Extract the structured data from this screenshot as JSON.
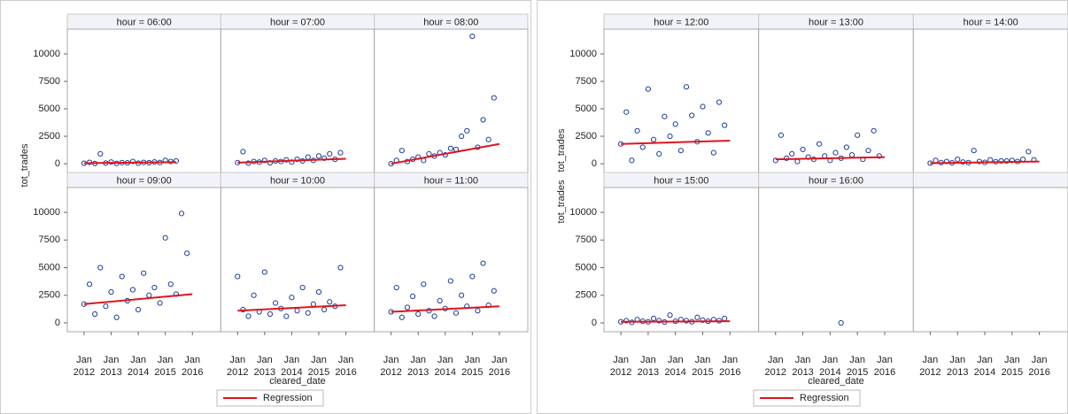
{
  "chart_data": [
    {
      "type": "scatter",
      "x_label": "cleared_date",
      "y_label": "tot_trades",
      "legend": "Regression",
      "point_color": "#1c3f94",
      "regression_color": "#e0141e",
      "columns": 3,
      "rows": 2,
      "x": [
        2012.0,
        2012.2,
        2012.4,
        2012.6,
        2012.8,
        2013.0,
        2013.2,
        2013.4,
        2013.6,
        2013.8,
        2014.0,
        2014.2,
        2014.4,
        2014.6,
        2014.8,
        2015.0,
        2015.2,
        2015.4,
        2015.6,
        2015.8
      ],
      "xlim": [
        2011.38,
        2017.05
      ],
      "xticks": [
        {
          "value": 2012,
          "label": "Jan 2012"
        },
        {
          "value": 2013,
          "label": "Jan 2013"
        },
        {
          "value": 2014,
          "label": "Jan 2014"
        },
        {
          "value": 2015,
          "label": "Jan 2015"
        },
        {
          "value": 2016,
          "label": "Jan 2016"
        }
      ],
      "ylim": [
        -800,
        12250
      ],
      "yticks": [
        0,
        2500,
        5000,
        7500,
        10000
      ],
      "panels": [
        {
          "title": "hour = 06:00",
          "values": [
            40,
            120,
            20,
            900,
            60,
            150,
            30,
            100,
            80,
            200,
            50,
            120,
            90,
            160,
            110,
            300,
            200,
            250,
            null,
            null
          ],
          "regression": {
            "x": [
              2012,
              2015.4
            ],
            "y": [
              50,
              150
            ]
          }
        },
        {
          "title": "hour = 07:00",
          "values": [
            100,
            1100,
            50,
            200,
            150,
            300,
            80,
            250,
            200,
            350,
            150,
            400,
            250,
            600,
            300,
            700,
            500,
            900,
            400,
            1000
          ],
          "regression": {
            "x": [
              2012,
              2016
            ],
            "y": [
              100,
              450
            ]
          }
        },
        {
          "title": "hour = 08:00",
          "values": [
            0,
            300,
            1200,
            200,
            400,
            600,
            300,
            900,
            700,
            1000,
            800,
            1400,
            1300,
            2500,
            3000,
            11600,
            1500,
            4000,
            2200,
            6000
          ],
          "regression": {
            "x": [
              2012,
              2016
            ],
            "y": [
              0,
              1800
            ]
          }
        },
        {
          "title": "hour = 09:00",
          "values": [
            1700,
            3500,
            800,
            5000,
            1500,
            2800,
            500,
            4200,
            2000,
            3000,
            1200,
            4500,
            2500,
            3200,
            1800,
            7700,
            3500,
            2600,
            9900,
            6300
          ],
          "regression": {
            "x": [
              2012,
              2016
            ],
            "y": [
              1700,
              2600
            ]
          }
        },
        {
          "title": "hour = 10:00",
          "values": [
            4200,
            1200,
            600,
            2500,
            1000,
            4600,
            800,
            1800,
            1300,
            600,
            2300,
            1100,
            3200,
            900,
            1700,
            2800,
            1200,
            1900,
            1500,
            5000
          ],
          "regression": {
            "x": [
              2012,
              2016
            ],
            "y": [
              1100,
              1600
            ]
          }
        },
        {
          "title": "hour = 11:00",
          "values": [
            1000,
            3200,
            500,
            1400,
            2400,
            800,
            3500,
            1100,
            600,
            2000,
            1300,
            3800,
            900,
            2500,
            1500,
            4200,
            1100,
            5400,
            1600,
            2900
          ],
          "regression": {
            "x": [
              2012,
              2016
            ],
            "y": [
              1000,
              1500
            ]
          }
        }
      ]
    },
    {
      "type": "scatter",
      "x_label": "cleared_date",
      "y_label": "tot_trades",
      "legend": "Regression",
      "point_color": "#1c3f94",
      "regression_color": "#e0141e",
      "columns": 3,
      "rows": 2,
      "x": [
        2012.0,
        2012.2,
        2012.4,
        2012.6,
        2012.8,
        2013.0,
        2013.2,
        2013.4,
        2013.6,
        2013.8,
        2014.0,
        2014.2,
        2014.4,
        2014.6,
        2014.8,
        2015.0,
        2015.2,
        2015.4,
        2015.6,
        2015.8
      ],
      "xlim": [
        2011.38,
        2017.05
      ],
      "xticks": [
        {
          "value": 2012,
          "label": "Jan 2012"
        },
        {
          "value": 2013,
          "label": "Jan 2013"
        },
        {
          "value": 2014,
          "label": "Jan 2014"
        },
        {
          "value": 2015,
          "label": "Jan 2015"
        },
        {
          "value": 2016,
          "label": "Jan 2016"
        }
      ],
      "ylim": [
        -800,
        12250
      ],
      "yticks": [
        0,
        2500,
        5000,
        7500,
        10000
      ],
      "panels": [
        {
          "title": "hour = 12:00",
          "values": [
            1800,
            4700,
            300,
            3000,
            1500,
            6800,
            2200,
            900,
            4300,
            2500,
            3600,
            1200,
            7000,
            4400,
            2000,
            5200,
            2800,
            1000,
            5600,
            3500
          ],
          "regression": {
            "x": [
              2012,
              2016
            ],
            "y": [
              1800,
              2100
            ]
          }
        },
        {
          "title": "hour = 13:00",
          "values": [
            300,
            2600,
            500,
            900,
            200,
            1300,
            600,
            400,
            1800,
            700,
            300,
            1000,
            500,
            1500,
            800,
            2600,
            400,
            1200,
            3000,
            700
          ],
          "regression": {
            "x": [
              2012,
              2016
            ],
            "y": [
              400,
              600
            ]
          }
        },
        {
          "title": "hour = 14:00",
          "values": [
            50,
            300,
            100,
            200,
            80,
            400,
            150,
            100,
            1200,
            200,
            120,
            350,
            180,
            250,
            250,
            300,
            200,
            400,
            1100,
            350
          ],
          "regression": {
            "x": [
              2012,
              2016
            ],
            "y": [
              50,
              200
            ]
          }
        },
        {
          "title": "hour = 15:00",
          "values": [
            100,
            200,
            50,
            300,
            150,
            100,
            400,
            200,
            80,
            700,
            150,
            300,
            200,
            100,
            500,
            250,
            150,
            300,
            200,
            400
          ],
          "regression": {
            "x": [
              2012,
              2016
            ],
            "y": [
              100,
              150
            ]
          }
        },
        {
          "title": "hour = 16:00",
          "values": [
            null,
            null,
            null,
            null,
            null,
            null,
            null,
            null,
            null,
            null,
            null,
            null,
            0,
            null,
            null,
            null,
            null,
            null,
            null,
            null
          ]
        }
      ]
    }
  ]
}
